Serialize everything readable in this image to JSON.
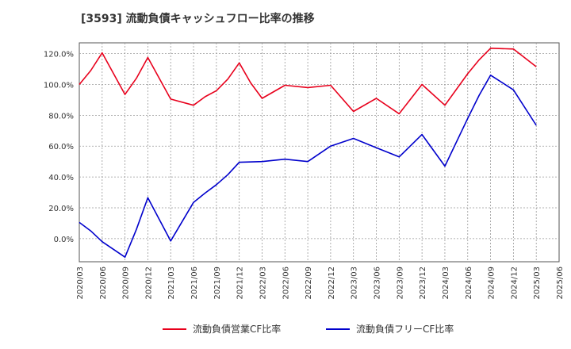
{
  "chart_data": {
    "type": "line",
    "title": "[3593]  流動負債キャッシュフロー比率の推移",
    "xlabel": "",
    "ylabel": "",
    "ylim": [
      -15,
      127
    ],
    "y_ticks": [
      "120.0%",
      "100.0%",
      "80.0%",
      "60.0%",
      "40.0%",
      "20.0%",
      "0.0%"
    ],
    "y_tick_values": [
      120,
      100,
      80,
      60,
      40,
      20,
      0
    ],
    "x_ticks": [
      "2020/03",
      "2020/06",
      "2020/09",
      "2020/12",
      "2021/03",
      "2021/06",
      "2021/09",
      "2021/12",
      "2022/03",
      "2022/06",
      "2022/09",
      "2022/12",
      "2023/03",
      "2023/06",
      "2023/09",
      "2023/12",
      "2024/03",
      "2024/06",
      "2024/09",
      "2024/12",
      "2025/03",
      "2025/06"
    ],
    "grid": true,
    "legend_position": "bottom",
    "series": [
      {
        "name": "流動負債営業CF比率",
        "color": "#e8001c",
        "values": [
          [
            0,
            100
          ],
          [
            0.5,
            109
          ],
          [
            1,
            120.5
          ],
          [
            2,
            93.5
          ],
          [
            2.5,
            104
          ],
          [
            3,
            117.5
          ],
          [
            4,
            90.5
          ],
          [
            5,
            86.5
          ],
          [
            5.5,
            92
          ],
          [
            6,
            96
          ],
          [
            6.5,
            103.5
          ],
          [
            7,
            114
          ],
          [
            7.5,
            101
          ],
          [
            8,
            91
          ],
          [
            9,
            99.5
          ],
          [
            10,
            98
          ],
          [
            11,
            99.5
          ],
          [
            12,
            82.5
          ],
          [
            13,
            91
          ],
          [
            14,
            81
          ],
          [
            15,
            100
          ],
          [
            16,
            86.5
          ],
          [
            17,
            107
          ],
          [
            17.5,
            116
          ],
          [
            18,
            123.5
          ],
          [
            19,
            123
          ],
          [
            20,
            111.5
          ]
        ]
      },
      {
        "name": "流動負債フリーCF比率",
        "color": "#0000cc",
        "values": [
          [
            0,
            10.5
          ],
          [
            0.5,
            5
          ],
          [
            1,
            -2
          ],
          [
            2,
            -12
          ],
          [
            2.5,
            6
          ],
          [
            3,
            26.5
          ],
          [
            4,
            -1.5
          ],
          [
            5,
            23.5
          ],
          [
            5.5,
            29.5
          ],
          [
            6,
            35
          ],
          [
            6.5,
            41.5
          ],
          [
            7,
            49.5
          ],
          [
            8,
            50
          ],
          [
            9,
            51.5
          ],
          [
            10,
            50
          ],
          [
            11,
            60
          ],
          [
            12,
            65
          ],
          [
            13,
            59
          ],
          [
            14,
            53
          ],
          [
            15,
            67.5
          ],
          [
            16,
            47
          ],
          [
            17,
            78
          ],
          [
            17.5,
            93
          ],
          [
            18,
            106
          ],
          [
            19,
            96.5
          ],
          [
            20,
            73.5
          ]
        ]
      }
    ]
  }
}
